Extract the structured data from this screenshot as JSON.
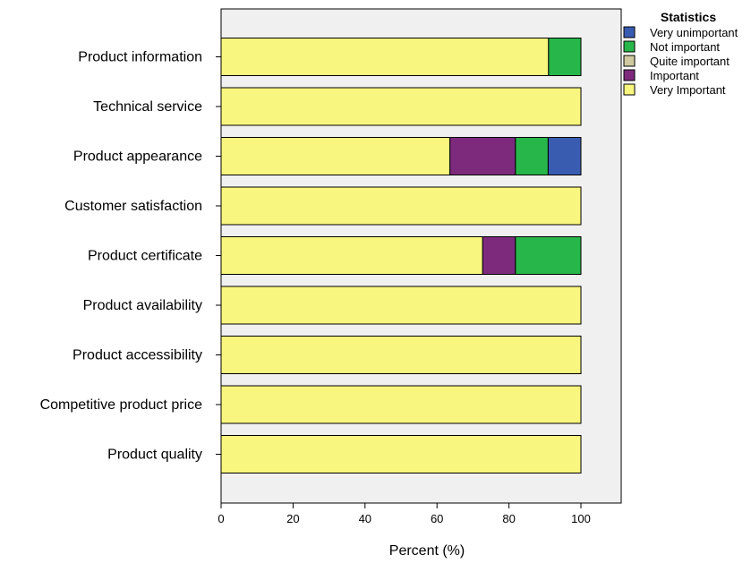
{
  "chart_data": {
    "type": "bar",
    "orientation": "horizontal",
    "stacked": true,
    "categories": [
      "Product information",
      "Technical service",
      "Product appearance",
      "Customer satisfaction",
      "Product certificate",
      "Product availability",
      "Product accessibility",
      "Competitive product price",
      "Product quality"
    ],
    "series": [
      {
        "name": "Very Important",
        "color": "#f8f67e",
        "values": [
          91,
          100,
          63.6,
          100,
          72.7,
          100,
          100,
          100,
          100
        ]
      },
      {
        "name": "Important",
        "color": "#7d2a7d",
        "values": [
          0,
          0,
          18.2,
          0,
          9.1,
          0,
          0,
          0,
          0
        ]
      },
      {
        "name": "Quite important",
        "color": "#cfc8a0",
        "values": [
          0,
          0,
          0,
          0,
          0,
          0,
          0,
          0,
          0
        ]
      },
      {
        "name": "Not important",
        "color": "#26b64a",
        "values": [
          9,
          0,
          9.1,
          0,
          18.2,
          0,
          0,
          0,
          0
        ]
      },
      {
        "name": "Very unimportant",
        "color": "#3a5cb0",
        "values": [
          0,
          0,
          9.1,
          0,
          0,
          0,
          0,
          0,
          0
        ]
      }
    ],
    "legend_title": "Statistics",
    "legend_order": [
      "Very unimportant",
      "Not important",
      "Quite important",
      "Important",
      "Very Important"
    ],
    "legend_position": "top-right",
    "xlabel": "Percent (%)",
    "ylabel": "",
    "xlim": [
      0,
      111
    ],
    "xticks": [
      0,
      20,
      40,
      60,
      80,
      100
    ],
    "plot_background": "#f0f0f0"
  }
}
